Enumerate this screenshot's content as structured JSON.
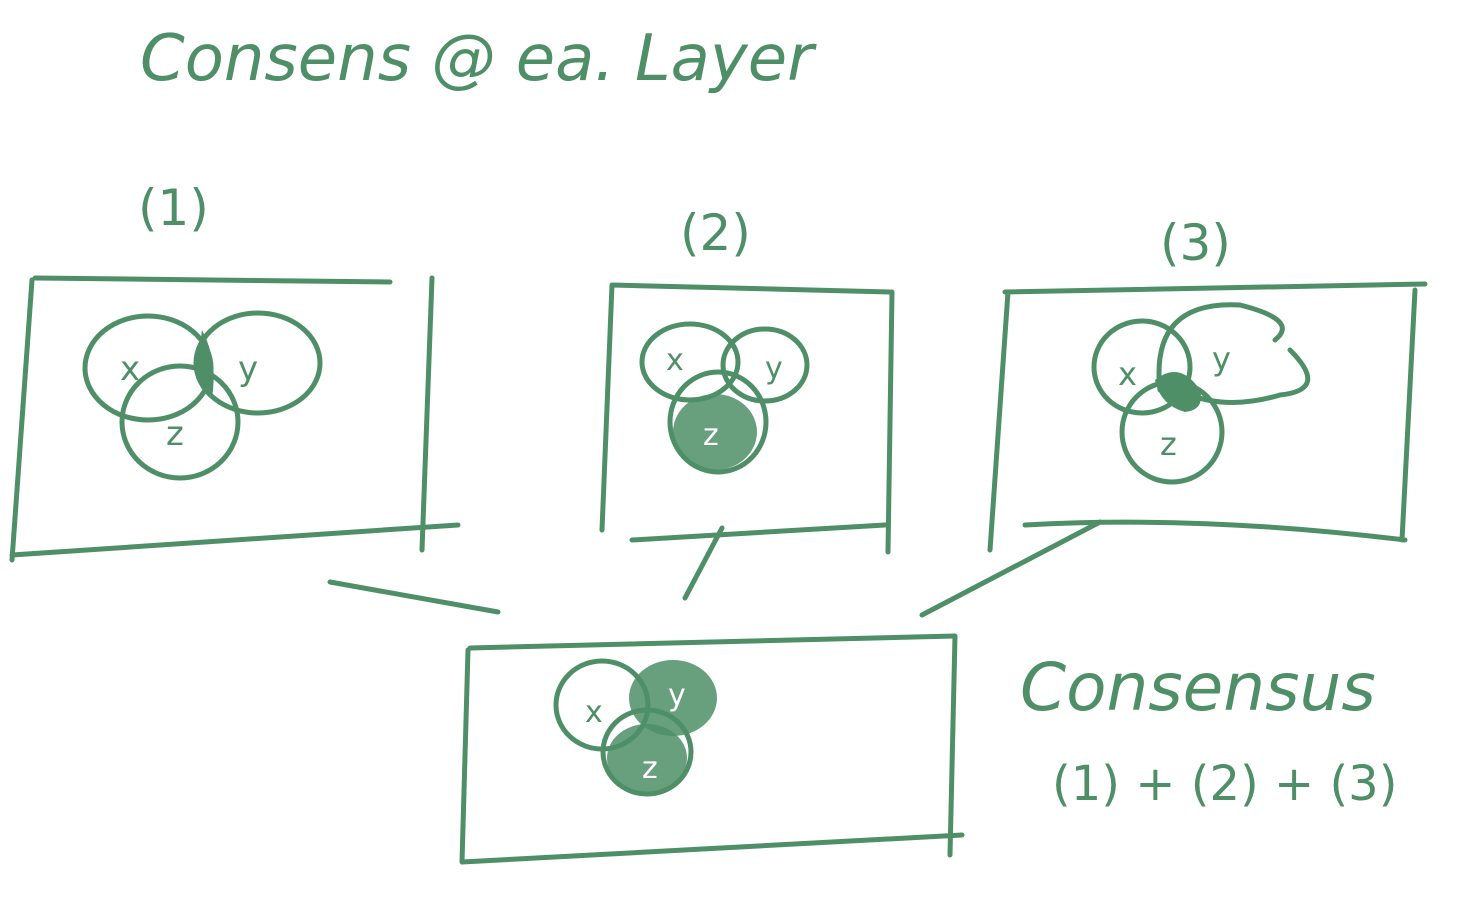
{
  "colors": {
    "ink": "#4e8f67",
    "background": "#ffffff"
  },
  "title": "Consens @ ea. Layer",
  "panels": [
    {
      "label": "(1)",
      "sets": [
        "x",
        "y",
        "z"
      ]
    },
    {
      "label": "(2)",
      "sets": [
        "x",
        "y",
        "z"
      ]
    },
    {
      "label": "(3)",
      "sets": [
        "x",
        "y",
        "z"
      ]
    }
  ],
  "consensus_panel": {
    "sets": [
      "x",
      "y",
      "z"
    ]
  },
  "consensus_note": {
    "title": "Consensus",
    "formula": "(1) + (2) + (3)"
  }
}
